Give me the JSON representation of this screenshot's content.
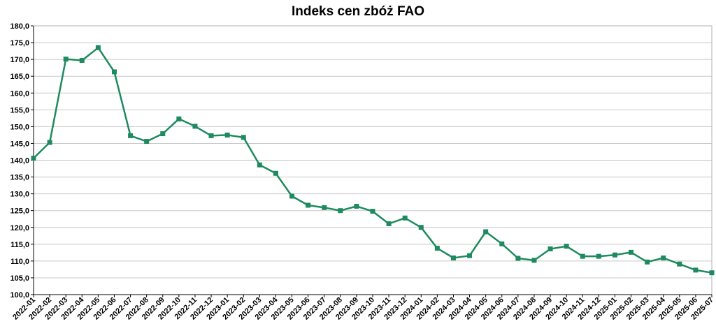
{
  "chart_data": {
    "type": "line",
    "title": "Indeks cen zbóż FAO",
    "xlabel": "",
    "ylabel": "",
    "ylim": [
      100,
      180
    ],
    "ytick_step": 5,
    "ytick_labels": [
      "100,0",
      "105,0",
      "110,0",
      "115,0",
      "120,0",
      "125,0",
      "130,0",
      "135,0",
      "140,0",
      "145,0",
      "150,0",
      "155,0",
      "160,0",
      "165,0",
      "170,0",
      "175,0",
      "180,0"
    ],
    "grid": true,
    "legend": "none",
    "line_color": "#1e8a60",
    "categories": [
      "2022-01",
      "2022-02",
      "2022-03",
      "2022-04",
      "2022-05",
      "2022-06",
      "2022-07",
      "2022-08",
      "2022-09",
      "2022-10",
      "2022-11",
      "2022-12",
      "2023-01",
      "2023-02",
      "2023-03",
      "2023-04",
      "2023-05",
      "2023-06",
      "2023-07",
      "2023-08",
      "2023-09",
      "2023-10",
      "2023-11",
      "2023-12",
      "2024-01",
      "2024-02",
      "2024-03",
      "2024-04",
      "2024-05",
      "2024-06",
      "2024-07",
      "2024-08",
      "2024-09",
      "2024-10",
      "2024-11",
      "2024-12",
      "2025-01",
      "2025-02",
      "2025-03",
      "2025-04",
      "2025-05",
      "2025-06",
      "2025-07"
    ],
    "values": [
      140.6,
      145.3,
      170.1,
      169.7,
      173.5,
      166.3,
      147.3,
      145.6,
      147.9,
      152.3,
      150.1,
      147.3,
      147.5,
      146.8,
      138.6,
      136.1,
      129.3,
      126.6,
      125.9,
      125.0,
      126.3,
      124.8,
      121.1,
      122.8,
      120.0,
      113.8,
      110.9,
      111.6,
      118.7,
      115.1,
      110.8,
      110.2,
      113.6,
      114.4,
      111.4,
      111.4,
      111.8,
      112.6,
      109.7,
      110.9,
      109.1,
      107.3,
      106.5
    ]
  }
}
